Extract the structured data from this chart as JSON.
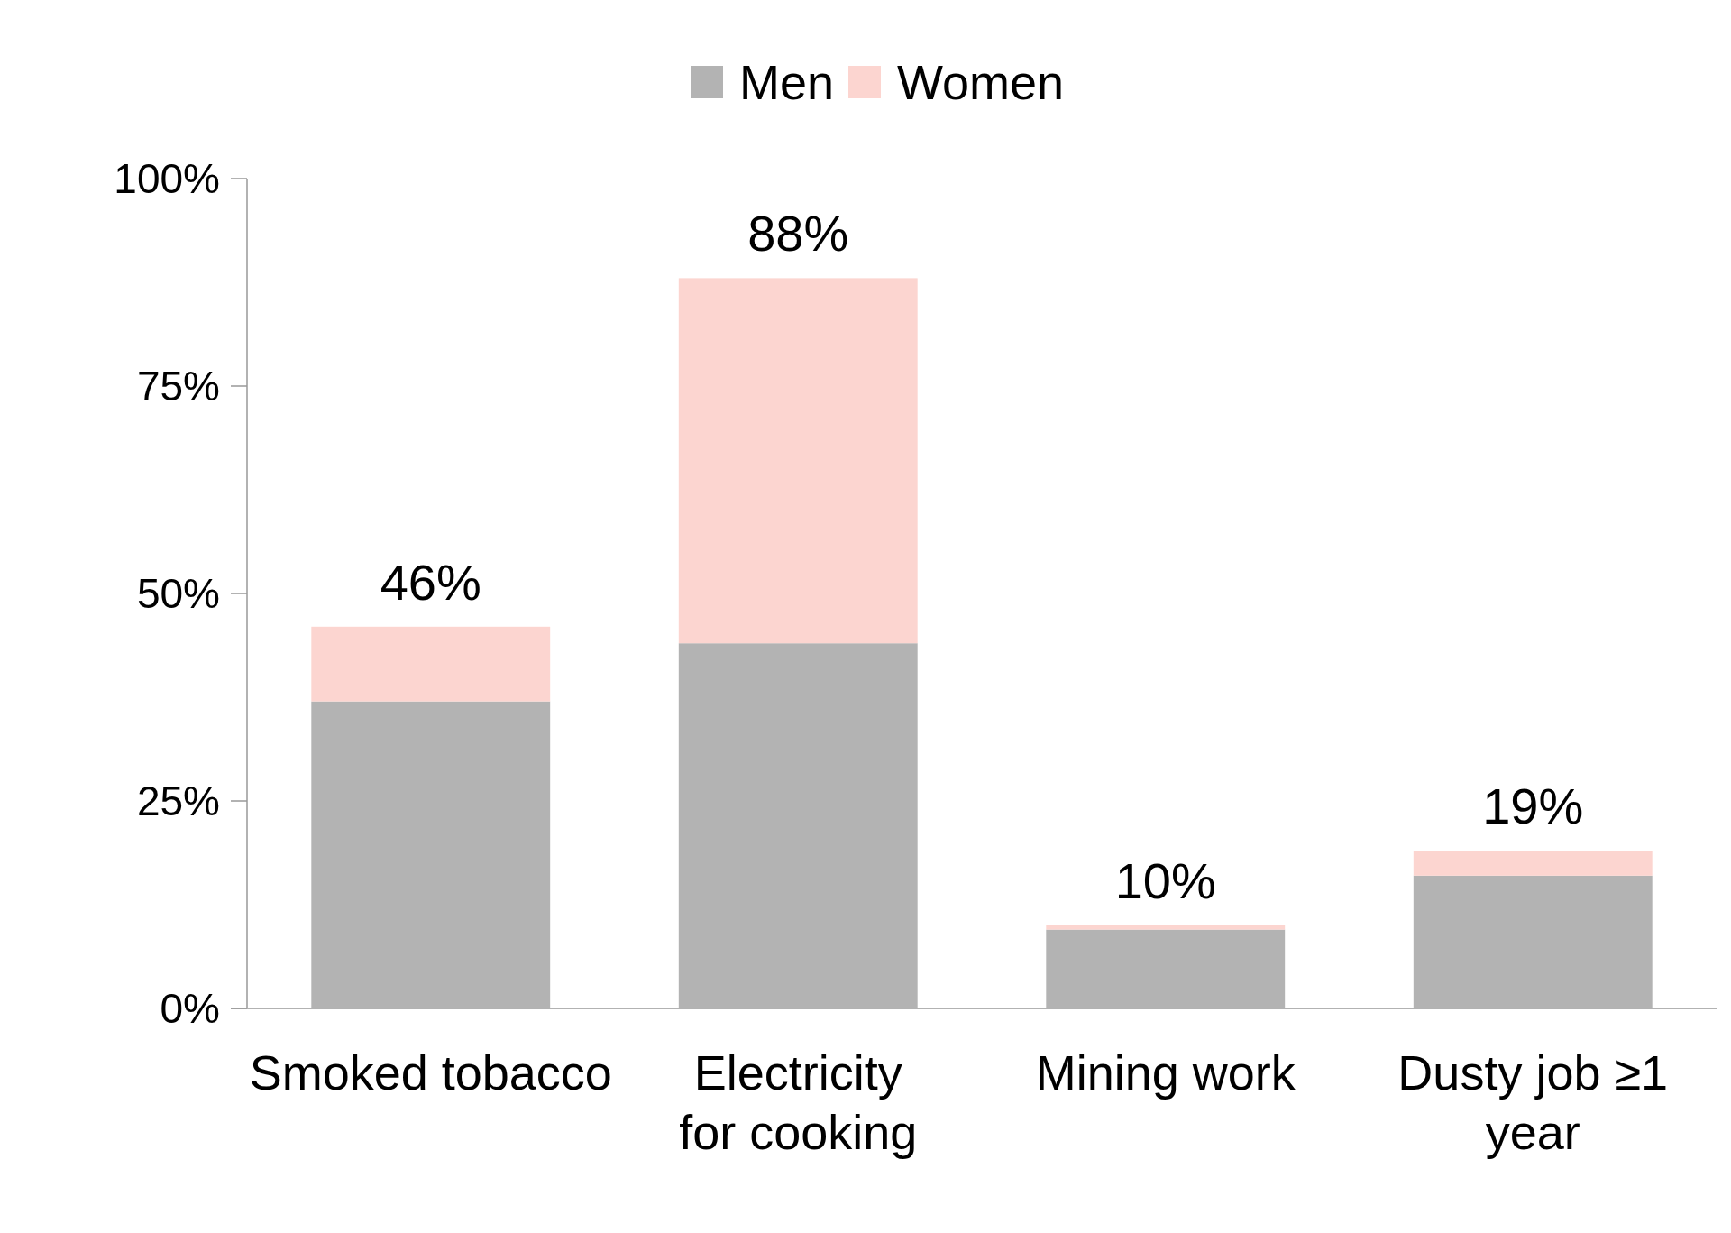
{
  "chart_data": {
    "type": "bar",
    "stacked": true,
    "categories": [
      "Smoked tobacco",
      "Electricity for cooking",
      "Mining work",
      "Dusty job ≥1 year"
    ],
    "series": [
      {
        "name": "Men",
        "color": "#b3b3b3",
        "values": [
          37,
          44,
          9.5,
          16
        ]
      },
      {
        "name": "Women",
        "color": "#fcd5d0",
        "values": [
          9,
          44,
          0.5,
          3
        ]
      }
    ],
    "totals": [
      "46%",
      "88%",
      "10%",
      "19%"
    ],
    "ylim": [
      0,
      100
    ],
    "yticks": [
      {
        "value": 0,
        "label": "0%"
      },
      {
        "value": 25,
        "label": "25%"
      },
      {
        "value": 50,
        "label": "50%"
      },
      {
        "value": 75,
        "label": "75%"
      },
      {
        "value": 100,
        "label": "100%"
      }
    ],
    "legend": "top"
  }
}
